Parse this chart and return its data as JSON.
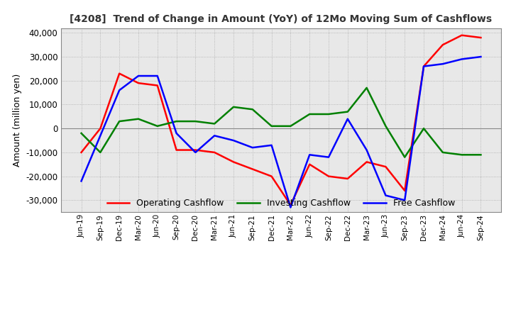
{
  "title": "[4208]  Trend of Change in Amount (YoY) of 12Mo Moving Sum of Cashflows",
  "ylabel": "Amount (million yen)",
  "ylim": [
    -35000,
    42000
  ],
  "yticks": [
    -30000,
    -20000,
    -10000,
    0,
    10000,
    20000,
    30000,
    40000
  ],
  "x_labels": [
    "Jun-19",
    "Sep-19",
    "Dec-19",
    "Mar-20",
    "Jun-20",
    "Sep-20",
    "Dec-20",
    "Mar-21",
    "Jun-21",
    "Sep-21",
    "Dec-21",
    "Mar-22",
    "Jun-22",
    "Sep-22",
    "Dec-22",
    "Mar-23",
    "Jun-23",
    "Sep-23",
    "Dec-23",
    "Mar-24",
    "Jun-24",
    "Sep-24"
  ],
  "operating_cashflow": [
    -10000,
    0,
    23000,
    19000,
    18000,
    -9000,
    -9000,
    -10000,
    -14000,
    -17000,
    -20000,
    -32000,
    -15000,
    -20000,
    -21000,
    -14000,
    -16000,
    -26000,
    26000,
    35000,
    39000,
    38000
  ],
  "investing_cashflow": [
    -2000,
    -10000,
    3000,
    4000,
    1000,
    3000,
    3000,
    2000,
    9000,
    8000,
    1000,
    1000,
    6000,
    6000,
    7000,
    17000,
    1000,
    -12000,
    0,
    -10000,
    -11000,
    -11000
  ],
  "free_cashflow": [
    -22000,
    -3000,
    16000,
    22000,
    22000,
    -2000,
    -10000,
    -3000,
    -5000,
    -8000,
    -7000,
    -33000,
    -11000,
    -12000,
    4000,
    -9000,
    -28000,
    -30000,
    26000,
    27000,
    29000,
    30000
  ],
  "operating_color": "#ff0000",
  "investing_color": "#008000",
  "free_color": "#0000ff",
  "grid_color": "#aaaaaa",
  "background_color": "#e8e8e8",
  "plot_bg_color": "#e8e8e8"
}
